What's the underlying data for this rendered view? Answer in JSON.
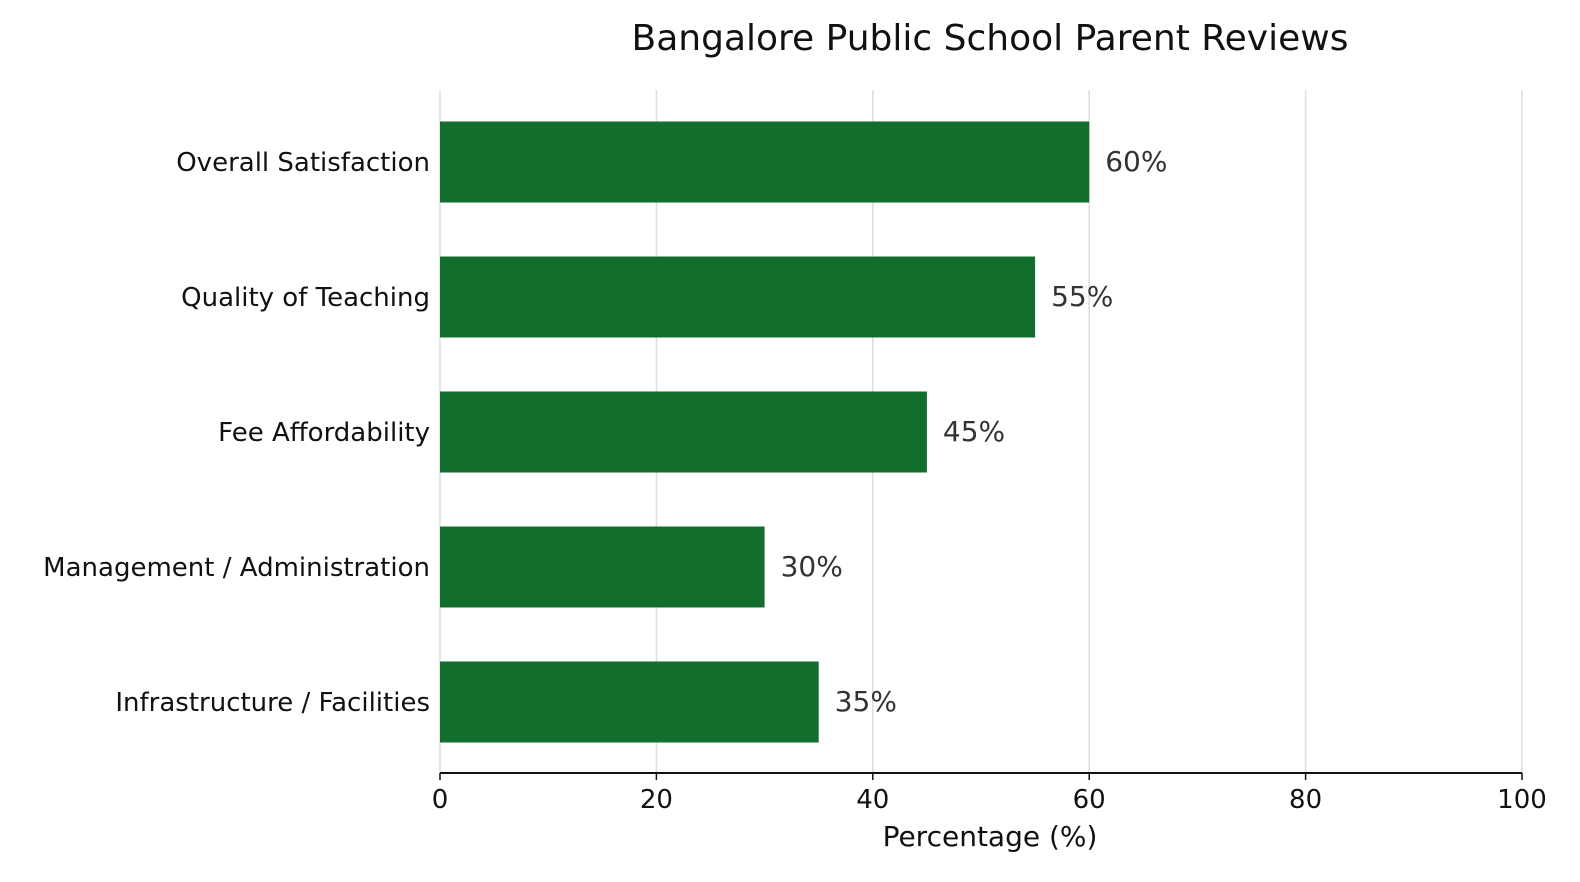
{
  "chart_data": {
    "type": "bar",
    "orientation": "horizontal",
    "title": "Bangalore Public School Parent Reviews",
    "xlabel": "Percentage (%)",
    "ylabel": "",
    "categories": [
      "Overall Satisfaction",
      "Quality of Teaching",
      "Fee Affordability",
      "Management / Administration",
      "Infrastructure / Facilities"
    ],
    "values": [
      60,
      55,
      45,
      30,
      35
    ],
    "value_labels": [
      "60%",
      "55%",
      "45%",
      "30%",
      "35%"
    ],
    "xlim": [
      0,
      100
    ],
    "xticks": [
      0,
      20,
      40,
      60,
      80,
      100
    ],
    "xtick_labels": [
      "0",
      "20",
      "40",
      "60",
      "80",
      "100"
    ],
    "grid": "vertical",
    "legend": "none",
    "bar_color": "#116e2c",
    "grid_color": "#dddddd"
  }
}
